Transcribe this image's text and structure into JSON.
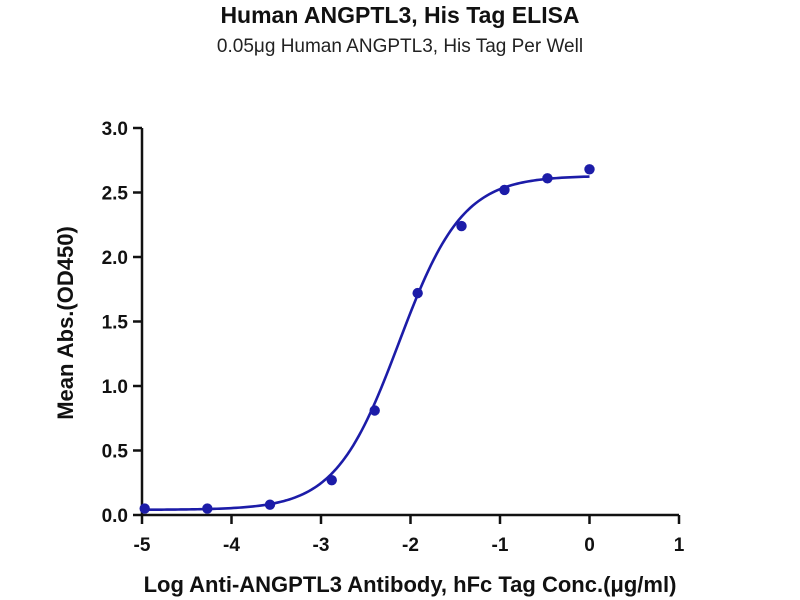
{
  "chart_data": {
    "type": "scatter",
    "title": "Human ANGPTL3, His Tag ELISA",
    "subtitle": "0.05μg Human ANGPTL3, His Tag Per Well",
    "xlabel": "Log Anti-ANGPTL3 Antibody, hFc Tag Conc.(μg/ml)",
    "ylabel": "Mean Abs.(OD450)",
    "xlim": [
      -5,
      1
    ],
    "ylim": [
      0,
      3.0
    ],
    "x_ticks": [
      "-5",
      "-4",
      "-3",
      "-2",
      "-1",
      "0",
      "1"
    ],
    "y_ticks": [
      "0.0",
      "0.5",
      "1.0",
      "1.5",
      "2.0",
      "2.5",
      "3.0"
    ],
    "series": [
      {
        "points": [
          {
            "x": -4.97,
            "y": 0.05
          },
          {
            "x": -4.27,
            "y": 0.05
          },
          {
            "x": -3.57,
            "y": 0.08
          },
          {
            "x": -2.88,
            "y": 0.27
          },
          {
            "x": -2.4,
            "y": 0.81
          },
          {
            "x": -1.92,
            "y": 1.72
          },
          {
            "x": -1.43,
            "y": 2.24
          },
          {
            "x": -0.95,
            "y": 2.52
          },
          {
            "x": -0.47,
            "y": 2.61
          },
          {
            "x": 0.0,
            "y": 2.68
          }
        ],
        "fit": {
          "model": "4PL",
          "bottom": 0.04,
          "top": 2.63,
          "logEC50": -2.13,
          "hill": 1.22
        }
      }
    ],
    "colors": {
      "series": "#1c1ca8",
      "axis": "#111111"
    },
    "grid": false,
    "legend": "none"
  }
}
